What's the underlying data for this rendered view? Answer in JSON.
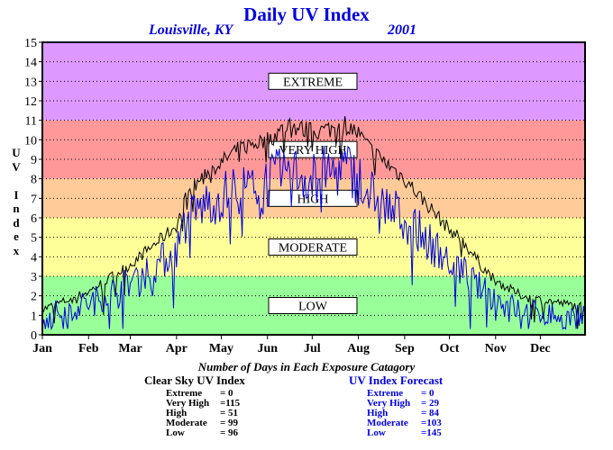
{
  "page": {
    "title": "Daily UV Index",
    "location": "Louisville, KY",
    "year": "2001"
  },
  "chart_data": {
    "type": "line",
    "title": "Daily UV Index",
    "ylabel": "UV Index",
    "xlabel": "",
    "ylim": [
      0,
      15
    ],
    "yticks": [
      0,
      1,
      2,
      3,
      4,
      5,
      6,
      7,
      8,
      9,
      10,
      11,
      12,
      13,
      14,
      15
    ],
    "months": [
      "Jan",
      "Feb",
      "Mar",
      "Apr",
      "May",
      "Jun",
      "Jul",
      "Aug",
      "Sep",
      "Oct",
      "Nov",
      "Dec"
    ],
    "grid": true,
    "bands": [
      {
        "label": "LOW",
        "from": 0,
        "to": 3,
        "color": "#99ff99"
      },
      {
        "label": "MODERATE",
        "from": 3,
        "to": 6,
        "color": "#ffff99"
      },
      {
        "label": "HIGH",
        "from": 6,
        "to": 8,
        "color": "#ffcc99"
      },
      {
        "label": "VERY HIGH",
        "from": 8,
        "to": 11,
        "color": "#ff9999"
      },
      {
        "label": "EXTREME",
        "from": 11,
        "to": 15,
        "color": "#dd99ff"
      }
    ],
    "series": [
      {
        "name": "Clear Sky UV Index",
        "color": "#000000",
        "x": [
          1,
          15,
          32,
          46,
          60,
          74,
          91,
          98,
          105,
          112,
          121,
          128,
          135,
          142,
          152,
          160,
          166,
          172,
          182,
          190,
          196,
          204,
          213,
          220,
          227,
          235,
          244,
          252,
          259,
          267,
          274,
          282,
          290,
          297,
          305,
          313,
          320,
          327,
          335,
          343,
          350,
          358,
          365
        ],
        "values": [
          1.3,
          1.7,
          2.2,
          2.9,
          3.6,
          4.5,
          5.6,
          7.2,
          7.8,
          8.4,
          8.8,
          9.3,
          9.6,
          9.8,
          10.0,
          10.4,
          10.8,
          10.6,
          10.4,
          10.5,
          10.6,
          10.8,
          10.3,
          9.6,
          9.1,
          8.6,
          8.0,
          7.3,
          6.7,
          6.0,
          5.4,
          4.9,
          4.1,
          3.4,
          2.8,
          2.4,
          2.1,
          1.9,
          1.8,
          1.7,
          1.6,
          1.5,
          1.5
        ]
      },
      {
        "name": "UV Index Forecast",
        "color": "#0000dd",
        "x": [
          1,
          15,
          32,
          46,
          60,
          74,
          91,
          98,
          105,
          112,
          121,
          128,
          135,
          142,
          152,
          160,
          166,
          172,
          182,
          190,
          196,
          204,
          213,
          220,
          227,
          235,
          244,
          252,
          259,
          267,
          274,
          282,
          290,
          297,
          305,
          313,
          320,
          327,
          335,
          343,
          350,
          358,
          365
        ],
        "values": [
          1.0,
          1.3,
          1.7,
          2.2,
          2.8,
          3.5,
          4.4,
          6.0,
          6.5,
          6.9,
          7.2,
          7.5,
          7.6,
          7.7,
          8.0,
          8.3,
          8.6,
          8.4,
          8.2,
          8.4,
          8.5,
          8.7,
          8.2,
          7.5,
          7.0,
          6.5,
          6.1,
          5.5,
          5.0,
          4.4,
          3.9,
          3.4,
          2.8,
          2.3,
          1.9,
          1.6,
          1.4,
          1.2,
          1.2,
          1.1,
          1.0,
          1.0,
          0.9
        ]
      }
    ]
  },
  "stats": {
    "title": "Number of Days in Each Exposure Catagory",
    "clear_sky": {
      "title": "Clear Sky UV Index",
      "rows": [
        {
          "name": "Extreme",
          "value": "= 0"
        },
        {
          "name": "Very High",
          "value": "=115"
        },
        {
          "name": "High",
          "value": "= 51"
        },
        {
          "name": "Moderate",
          "value": "= 99"
        },
        {
          "name": "Low",
          "value": "= 96"
        }
      ]
    },
    "forecast": {
      "title": "UV Index Forecast",
      "rows": [
        {
          "name": "Extreme",
          "value": "= 0"
        },
        {
          "name": "Very High",
          "value": "= 29"
        },
        {
          "name": "High",
          "value": "= 84"
        },
        {
          "name": "Moderate",
          "value": "=103"
        },
        {
          "name": "Low",
          "value": "=145"
        }
      ]
    }
  }
}
